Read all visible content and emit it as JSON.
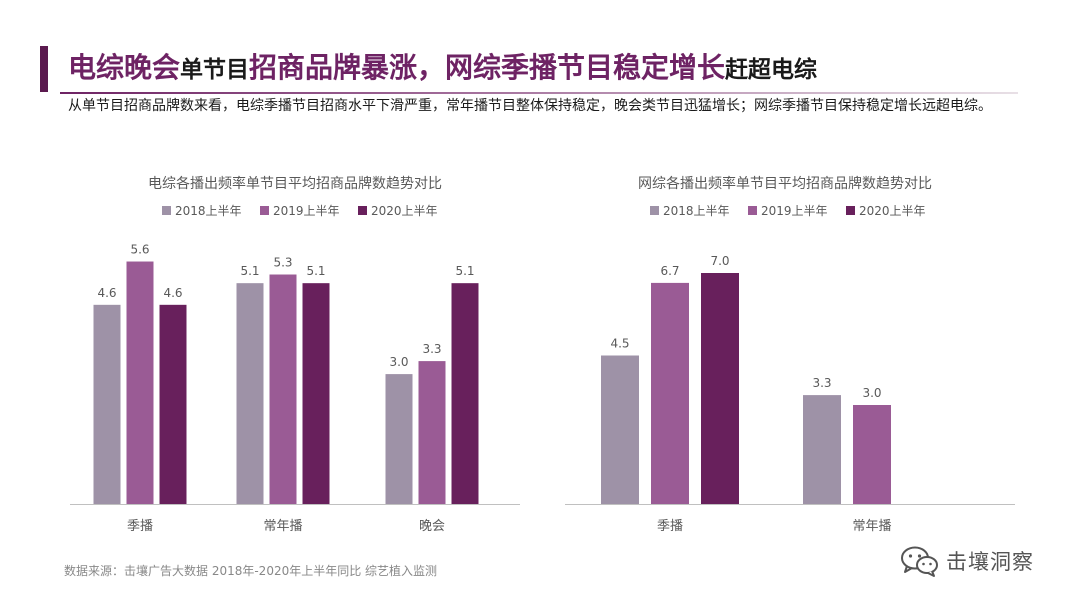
{
  "header": {
    "title_parts": [
      "电综晚会",
      "单节目",
      "招商品牌暴涨，网综季播节目稳定增长",
      "赶超电综"
    ],
    "subtitle": "从单节目招商品牌数来看，电综季播节目招商水平下滑严重，常年播节目整体保持稳定，晚会类节目迅猛增长；网综季播节目保持稳定增长远超电综。"
  },
  "colors": {
    "series": [
      "#9e92a7",
      "#9a5b95",
      "#68205c"
    ],
    "accent": "#6e2364",
    "axis": "#c0c0c0",
    "text": "#595959"
  },
  "chart_data": [
    {
      "type": "bar",
      "title": "电综各播出频率单节目平均招商品牌数趋势对比",
      "categories": [
        "季播",
        "常年播",
        "晚会"
      ],
      "series": [
        {
          "name": "2018上半年",
          "values": [
            4.6,
            5.1,
            3.0
          ]
        },
        {
          "name": "2019上半年",
          "values": [
            5.6,
            5.3,
            3.3
          ]
        },
        {
          "name": "2020上半年",
          "values": [
            4.6,
            5.1,
            5.1
          ]
        }
      ],
      "value_labels": [
        [
          "4.6",
          "5.1",
          "3.0"
        ],
        [
          "5.6",
          "5.3",
          "3.3"
        ],
        [
          "4.6",
          "5.1",
          "5.1"
        ]
      ],
      "ylim": [
        0,
        8.1
      ],
      "grid": false,
      "legend": "top"
    },
    {
      "type": "bar",
      "title": "网综各播出频率单节目平均招商品牌数趋势对比",
      "categories": [
        "季播",
        "常年播"
      ],
      "series": [
        {
          "name": "2018上半年",
          "values": [
            4.5,
            3.3
          ]
        },
        {
          "name": "2019上半年",
          "values": [
            6.7,
            3.0
          ]
        },
        {
          "name": "2020上半年",
          "values": [
            7.0,
            null
          ]
        }
      ],
      "value_labels": [
        [
          "4.5",
          "3.3"
        ],
        [
          "6.7",
          "3.0"
        ],
        [
          "7.0",
          null
        ]
      ],
      "ylim": [
        0,
        9.5
      ],
      "grid": false,
      "legend": "top"
    }
  ],
  "footer": {
    "source": "数据来源：击壤广告大数据 2018年-2020年上半年同比 综艺植入监测",
    "watermark": "击壤洞察"
  }
}
